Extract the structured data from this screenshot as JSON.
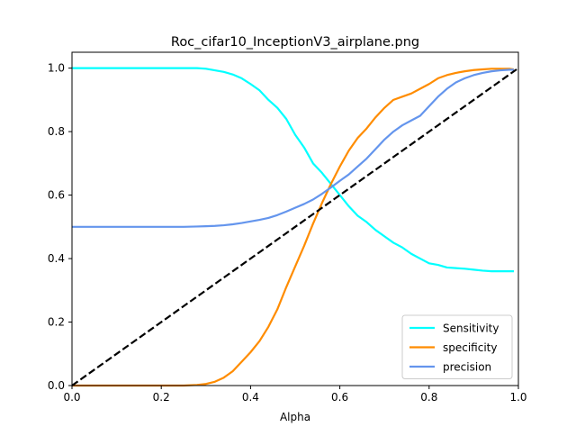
{
  "chart_data": {
    "type": "line",
    "title": "Roc_cifar10_InceptionV3_airplane.png",
    "xlabel": "Alpha",
    "ylabel": "",
    "xlim": [
      0,
      1
    ],
    "ylim": [
      0,
      1.05
    ],
    "xticks": [
      0.0,
      0.2,
      0.4,
      0.6,
      0.8,
      1.0
    ],
    "xtick_labels": [
      "0.0",
      "0.2",
      "0.4",
      "0.6",
      "0.8",
      "1.0"
    ],
    "yticks": [
      0.0,
      0.2,
      0.4,
      0.6,
      0.8,
      1.0
    ],
    "ytick_labels": [
      "0.0",
      "0.2",
      "0.4",
      "0.6",
      "0.8",
      "1.0"
    ],
    "grid": false,
    "legend_position": "lower-right",
    "series": [
      {
        "name": "Sensitivity",
        "color": "#00ffff",
        "x": [
          0.0,
          0.05,
          0.1,
          0.15,
          0.2,
          0.25,
          0.28,
          0.3,
          0.32,
          0.34,
          0.36,
          0.38,
          0.4,
          0.42,
          0.44,
          0.46,
          0.48,
          0.5,
          0.52,
          0.54,
          0.56,
          0.58,
          0.6,
          0.62,
          0.64,
          0.66,
          0.68,
          0.7,
          0.72,
          0.74,
          0.76,
          0.78,
          0.8,
          0.82,
          0.84,
          0.86,
          0.88,
          0.9,
          0.92,
          0.94,
          0.96,
          0.98,
          0.99
        ],
        "y": [
          1.0,
          1.0,
          1.0,
          1.0,
          1.0,
          1.0,
          1.0,
          0.998,
          0.993,
          0.988,
          0.98,
          0.968,
          0.95,
          0.93,
          0.9,
          0.875,
          0.84,
          0.79,
          0.75,
          0.7,
          0.67,
          0.635,
          0.6,
          0.565,
          0.535,
          0.515,
          0.49,
          0.47,
          0.45,
          0.435,
          0.415,
          0.4,
          0.385,
          0.38,
          0.372,
          0.37,
          0.368,
          0.365,
          0.362,
          0.36,
          0.36,
          0.36,
          0.36
        ]
      },
      {
        "name": "specificity",
        "color": "#ff8c00",
        "x": [
          0.0,
          0.05,
          0.1,
          0.15,
          0.2,
          0.25,
          0.28,
          0.3,
          0.32,
          0.34,
          0.36,
          0.38,
          0.4,
          0.42,
          0.44,
          0.46,
          0.48,
          0.5,
          0.52,
          0.54,
          0.56,
          0.58,
          0.6,
          0.62,
          0.64,
          0.66,
          0.68,
          0.7,
          0.72,
          0.74,
          0.76,
          0.78,
          0.8,
          0.82,
          0.84,
          0.86,
          0.88,
          0.9,
          0.92,
          0.94,
          0.96,
          0.98,
          0.99
        ],
        "y": [
          0.0,
          0.0,
          0.0,
          0.0,
          0.0,
          0.0,
          0.002,
          0.005,
          0.012,
          0.025,
          0.045,
          0.075,
          0.105,
          0.14,
          0.185,
          0.24,
          0.31,
          0.375,
          0.44,
          0.51,
          0.575,
          0.635,
          0.69,
          0.74,
          0.78,
          0.81,
          0.845,
          0.875,
          0.9,
          0.91,
          0.92,
          0.935,
          0.95,
          0.968,
          0.978,
          0.985,
          0.99,
          0.994,
          0.996,
          0.998,
          0.998,
          0.998,
          0.996
        ]
      },
      {
        "name": "precision",
        "color": "#6495ed",
        "x": [
          0.0,
          0.05,
          0.1,
          0.15,
          0.2,
          0.25,
          0.28,
          0.3,
          0.32,
          0.34,
          0.36,
          0.38,
          0.4,
          0.42,
          0.44,
          0.46,
          0.48,
          0.5,
          0.52,
          0.54,
          0.56,
          0.58,
          0.6,
          0.62,
          0.64,
          0.66,
          0.68,
          0.7,
          0.72,
          0.74,
          0.76,
          0.78,
          0.8,
          0.82,
          0.84,
          0.86,
          0.88,
          0.9,
          0.92,
          0.94,
          0.96,
          0.98,
          0.99
        ],
        "y": [
          0.5,
          0.5,
          0.5,
          0.5,
          0.5,
          0.5,
          0.501,
          0.502,
          0.503,
          0.505,
          0.508,
          0.512,
          0.517,
          0.522,
          0.528,
          0.537,
          0.548,
          0.56,
          0.572,
          0.586,
          0.604,
          0.624,
          0.645,
          0.665,
          0.69,
          0.715,
          0.745,
          0.775,
          0.8,
          0.82,
          0.835,
          0.85,
          0.88,
          0.91,
          0.935,
          0.955,
          0.968,
          0.978,
          0.985,
          0.99,
          0.993,
          0.995,
          0.995
        ]
      },
      {
        "name": "",
        "color": "#000000",
        "style": "dashed",
        "x": [
          0.0,
          1.0
        ],
        "y": [
          0.0,
          1.0
        ]
      }
    ]
  }
}
